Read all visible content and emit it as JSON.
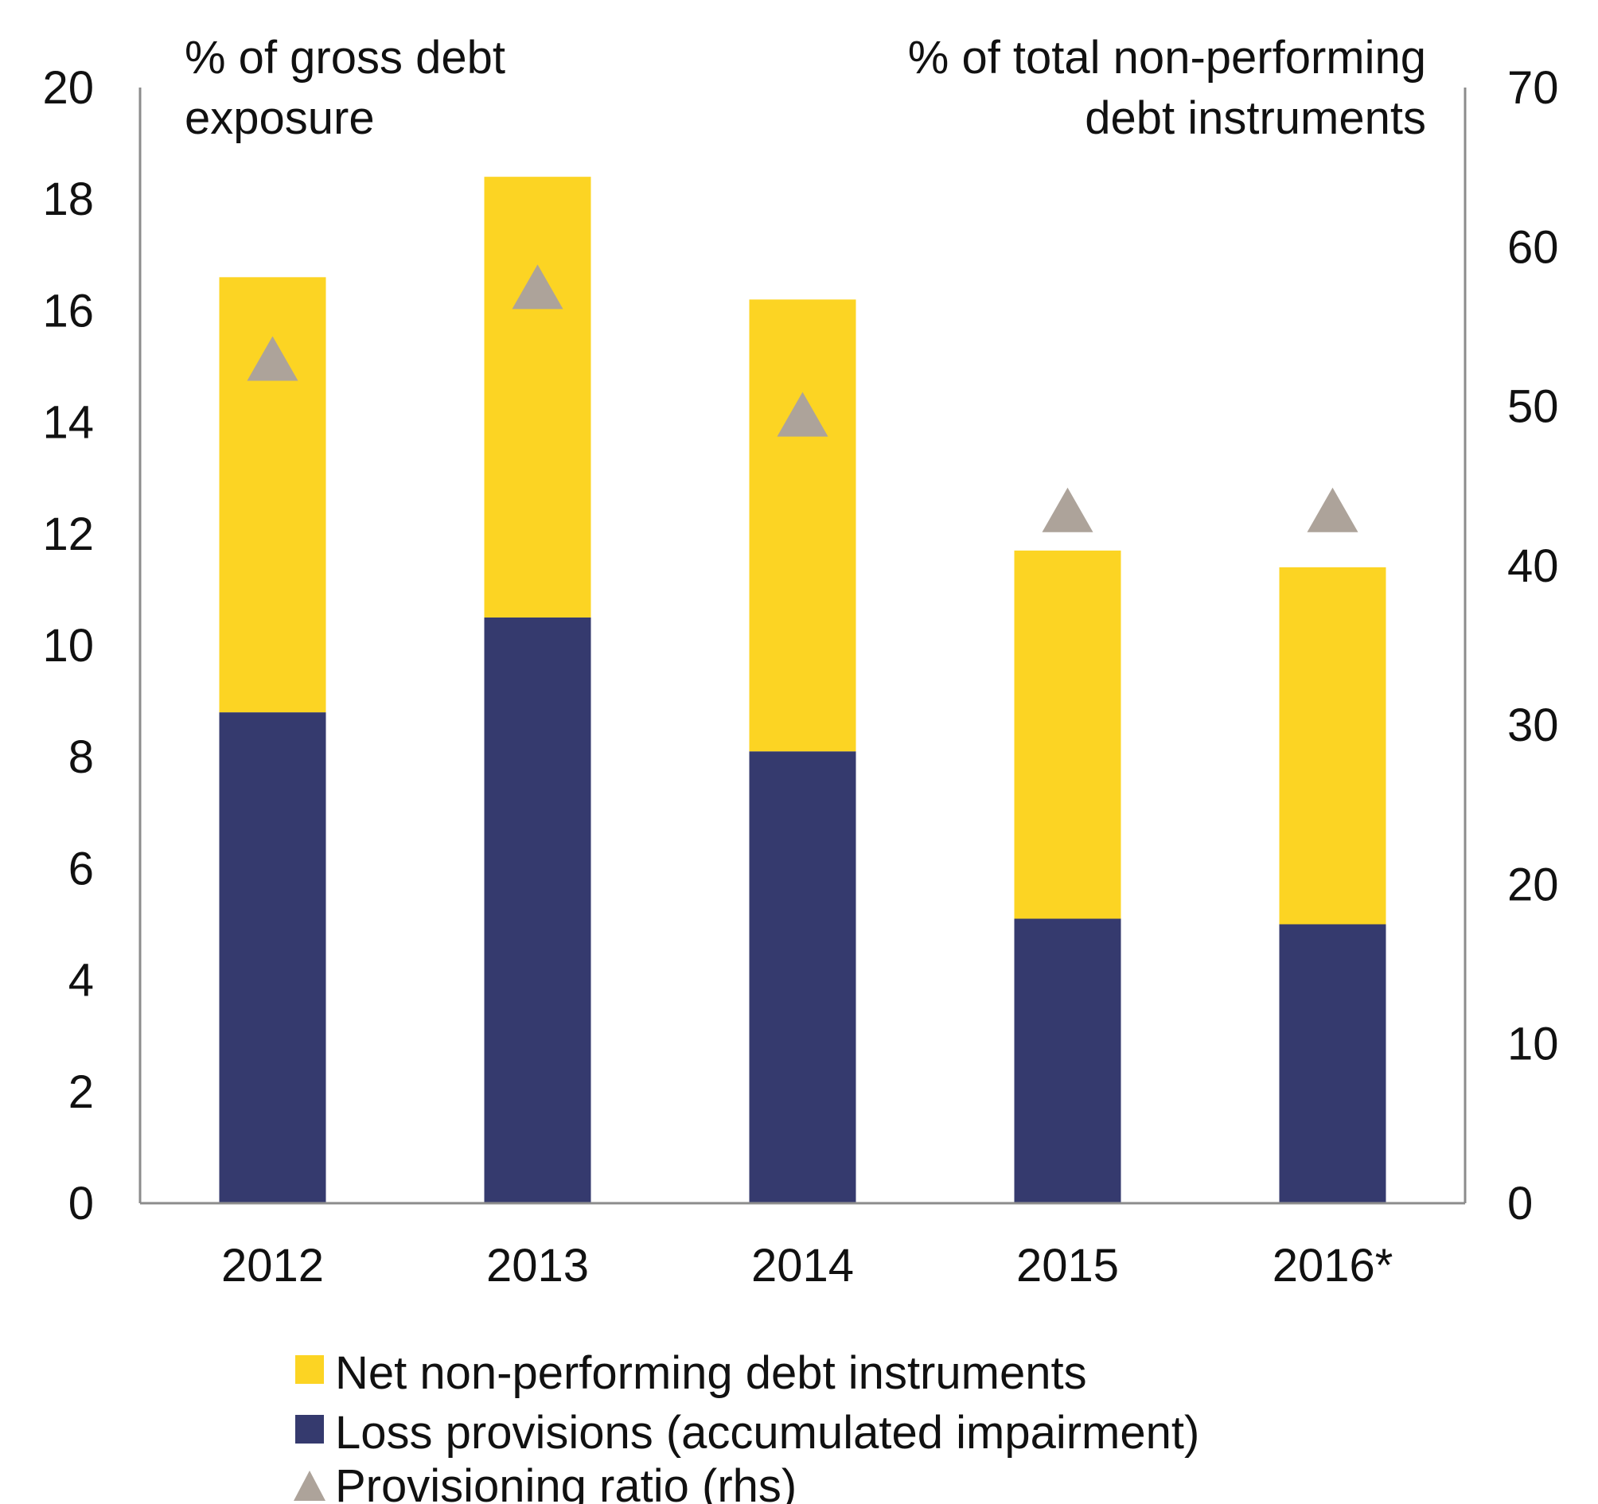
{
  "chart_data": {
    "type": "bar",
    "stacked": true,
    "categories": [
      "2012",
      "2013",
      "2014",
      "2015",
      "2016*"
    ],
    "series": [
      {
        "name": "Loss provisions (accumulated impairment)",
        "axis": "left",
        "color": "#353A6E",
        "values": [
          8.8,
          10.5,
          8.1,
          5.1,
          5.0
        ]
      },
      {
        "name": "Net non-performing debt instruments",
        "axis": "left",
        "color": "#FCD423",
        "values": [
          7.8,
          7.9,
          8.1,
          6.6,
          6.4
        ]
      },
      {
        "name": "Provisioning ratio (rhs)",
        "axis": "right",
        "type": "marker",
        "marker": "triangle",
        "color": "#ADA39A",
        "values": [
          53,
          57.5,
          49.5,
          43.5,
          43.5
        ]
      }
    ],
    "ylabel_left": [
      "% of gross debt",
      "exposure"
    ],
    "ylabel_right": [
      "% of total non-performing",
      "debt instruments"
    ],
    "ylim_left": [
      0,
      20
    ],
    "yticks_left": [
      "0",
      "2",
      "4",
      "6",
      "8",
      "10",
      "12",
      "14",
      "16",
      "18",
      "20"
    ],
    "ylim_right": [
      0,
      70
    ],
    "yticks_right": [
      "0",
      "10",
      "20",
      "30",
      "40",
      "50",
      "60",
      "70"
    ],
    "legend": [
      "Net non-performing debt instruments",
      "Loss provisions (accumulated impairment)",
      "Provisioning ratio (rhs)"
    ],
    "legend_position": "bottom",
    "grid": false
  }
}
